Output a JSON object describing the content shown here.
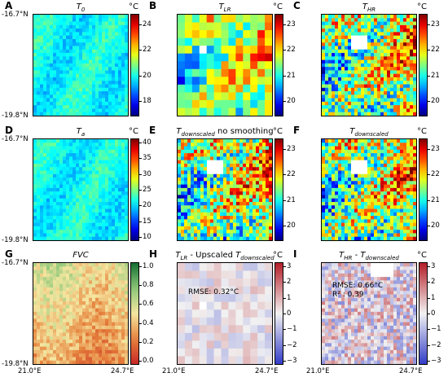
{
  "axes": {
    "lat_top": "-16.7°N",
    "lat_bottom": "-19.8°N",
    "lon_left": "21.0°E",
    "lon_right": "24.7°E"
  },
  "unit": "°C",
  "panels": [
    {
      "id": "A",
      "title_main": "T",
      "title_sub": "0",
      "title_rest": "",
      "ticks": [
        "24",
        "22",
        "20",
        "18"
      ],
      "cmap": "jet"
    },
    {
      "id": "B",
      "title_main": "T",
      "title_sub": "LR",
      "title_rest": "",
      "ticks": [
        "23",
        "22",
        "21",
        "20"
      ],
      "cmap": "jet"
    },
    {
      "id": "C",
      "title_main": "T",
      "title_sub": "HR",
      "title_rest": "",
      "ticks": [
        "23",
        "22",
        "21",
        "20"
      ],
      "cmap": "jet"
    },
    {
      "id": "D",
      "title_main": "T",
      "title_sub": "a",
      "title_rest": "",
      "ticks": [
        "40",
        "35",
        "30",
        "25",
        "20",
        "15",
        "10"
      ],
      "cmap": "jet"
    },
    {
      "id": "E",
      "title_main": "T",
      "title_sub": "downscaled",
      "title_rest": " no smoothing",
      "ticks": [
        "23",
        "22",
        "21",
        "20"
      ],
      "cmap": "jet"
    },
    {
      "id": "F",
      "title_main": "T",
      "title_sub": "downscaled",
      "title_rest": "",
      "ticks": [
        "23",
        "22",
        "21",
        "20"
      ],
      "cmap": "jet"
    },
    {
      "id": "G",
      "title_main": "FVC",
      "title_sub": "",
      "title_rest": "",
      "ticks": [
        "1.0",
        "0.8",
        "0.6",
        "0.4",
        "0.2",
        "0.0"
      ],
      "cmap": "ylgn",
      "unit": ""
    },
    {
      "id": "H",
      "title_main": "T",
      "title_sub": "LR",
      "title_rest": " - Upscaled ",
      "title_main2": "T",
      "title_sub2": "downscaled",
      "ticks": [
        "3",
        "2",
        "1",
        "0",
        "−1",
        "−2",
        "−3"
      ],
      "cmap": "bwr",
      "annotation": [
        "RMSE: 0.32°C"
      ]
    },
    {
      "id": "I",
      "title_main": "T",
      "title_sub": "HR",
      "title_rest": " - ",
      "title_main2": "T",
      "title_sub2": "downscaled",
      "ticks": [
        "3",
        "2",
        "1",
        "0",
        "−1",
        "−2",
        "−3"
      ],
      "cmap": "bwr",
      "annotation": [
        "RMSE: 0.66°C",
        "R² : 0.39"
      ]
    }
  ],
  "chart_data": {
    "type": "heatmap",
    "title": "",
    "panels": [
      {
        "id": "A",
        "name": "T0",
        "colorbar_range": [
          17,
          25
        ],
        "units": "°C"
      },
      {
        "id": "B",
        "name": "TLR",
        "colorbar_range": [
          19.5,
          23
        ],
        "units": "°C"
      },
      {
        "id": "C",
        "name": "THR",
        "colorbar_range": [
          19.5,
          23
        ],
        "units": "°C"
      },
      {
        "id": "D",
        "name": "Ta",
        "colorbar_range": [
          10,
          40
        ],
        "units": "°C"
      },
      {
        "id": "E",
        "name": "Tdownscaled no smoothing",
        "colorbar_range": [
          19.5,
          23
        ],
        "units": "°C"
      },
      {
        "id": "F",
        "name": "Tdownscaled",
        "colorbar_range": [
          19.5,
          23
        ],
        "units": "°C"
      },
      {
        "id": "G",
        "name": "FVC",
        "colorbar_range": [
          0,
          1
        ],
        "units": ""
      },
      {
        "id": "H",
        "name": "TLR - Upscaled Tdownscaled",
        "colorbar_range": [
          -3,
          3
        ],
        "units": "°C",
        "rmse": "0.32°C"
      },
      {
        "id": "I",
        "name": "THR - Tdownscaled",
        "colorbar_range": [
          -3,
          3
        ],
        "units": "°C",
        "rmse": "0.66°C",
        "r2": "0.39"
      }
    ],
    "lat_range": [
      -19.8,
      -16.7
    ],
    "lon_range": [
      21.0,
      24.7
    ]
  }
}
